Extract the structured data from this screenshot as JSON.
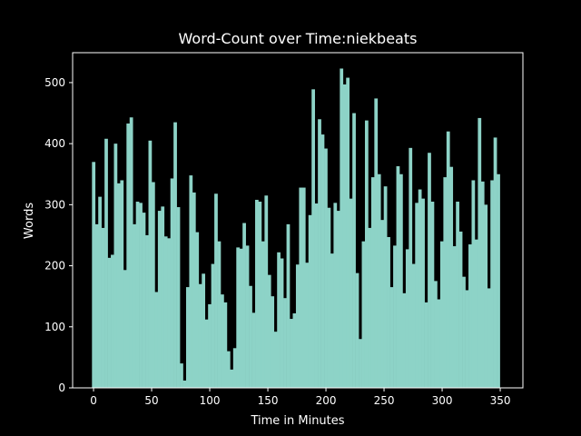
{
  "chart_data": {
    "type": "bar",
    "title": "Word-Count over Time:niekbeats",
    "x_label": "Time in Minutes",
    "y_label": "Words",
    "x": [
      0,
      2.7,
      5.4,
      8.1,
      10.8,
      13.5,
      16.2,
      18.9,
      21.6,
      24.3,
      27,
      29.7,
      32.4,
      35.1,
      37.8,
      40.5,
      43.2,
      45.9,
      48.6,
      51.3,
      54,
      56.7,
      59.4,
      62.1,
      64.8,
      67.5,
      70.2,
      72.9,
      75.6,
      78.3,
      81,
      83.7,
      86.4,
      89.1,
      91.8,
      94.5,
      97.2,
      99.9,
      102.6,
      105.3,
      108,
      110.7,
      113.4,
      116.1,
      118.8,
      121.5,
      124.2,
      126.9,
      129.6,
      132.3,
      135,
      137.7,
      140.4,
      143.1,
      145.8,
      148.5,
      151.2,
      153.9,
      156.6,
      159.3,
      162,
      164.7,
      167.4,
      170.1,
      172.8,
      175.5,
      178.2,
      180.9,
      183.6,
      186.3,
      189,
      191.7,
      194.4,
      197.1,
      199.8,
      202.5,
      205.2,
      207.9,
      210.6,
      213.3,
      216,
      218.7,
      221.4,
      224.1,
      226.8,
      229.5,
      232.2,
      234.9,
      237.6,
      240.3,
      243,
      245.7,
      248.4,
      251.1,
      253.8,
      256.5,
      259.2,
      261.9,
      264.6,
      267.3,
      270,
      272.7,
      275.4,
      278.1,
      280.8,
      283.5,
      286.2,
      288.9,
      291.6,
      294.3,
      297,
      299.7,
      302.4,
      305.1,
      307.8,
      310.5,
      313.2,
      315.9,
      318.6,
      321.3,
      324,
      326.7,
      329.4,
      332.1,
      334.8,
      337.5,
      340.2,
      342.9,
      345.6,
      348.3
    ],
    "values": [
      370,
      268,
      313,
      262,
      408,
      213,
      218,
      400,
      335,
      340,
      193,
      433,
      443,
      268,
      305,
      303,
      287,
      250,
      405,
      337,
      157,
      290,
      297,
      248,
      245,
      343,
      435,
      296,
      40,
      12,
      165,
      348,
      320,
      255,
      170,
      187,
      112,
      137,
      203,
      318,
      240,
      153,
      140,
      60,
      30,
      65,
      230,
      228,
      270,
      233,
      167,
      123,
      308,
      305,
      240,
      315,
      185,
      150,
      92,
      222,
      212,
      147,
      268,
      113,
      122,
      202,
      328,
      328,
      205,
      283,
      489,
      302,
      440,
      415,
      392,
      295,
      220,
      303,
      290,
      523,
      497,
      508,
      310,
      450,
      188,
      80,
      240,
      438,
      262,
      345,
      474,
      350,
      275,
      330,
      247,
      165,
      233,
      363,
      350,
      155,
      227,
      393,
      203,
      303,
      325,
      310,
      140,
      385,
      305,
      175,
      145,
      240,
      345,
      420,
      362,
      232,
      305,
      256,
      182,
      160,
      235,
      340,
      243,
      442,
      338,
      300,
      163,
      340,
      410,
      350
    ],
    "color": "#8dd3c7",
    "xlim": [
      -18,
      369.5
    ],
    "ylim": [
      0,
      549
    ],
    "xticks": [
      0,
      50,
      100,
      150,
      200,
      250,
      300,
      350
    ],
    "yticks": [
      0,
      100,
      200,
      300,
      400,
      500
    ]
  }
}
